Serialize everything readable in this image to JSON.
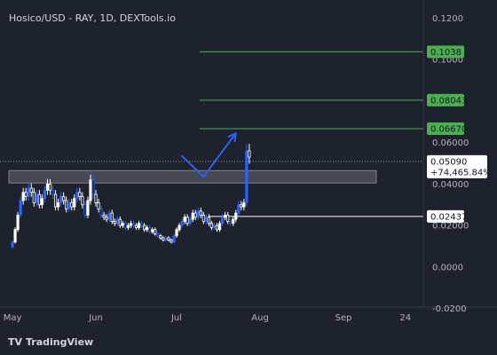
{
  "header": {
    "title": "Hosico/USD - RAY, 1D, DEXTools.io"
  },
  "brand": {
    "logo_text": "TV",
    "name": "TradingView"
  },
  "colors": {
    "background": "#1e222d",
    "candle": "#ffffff",
    "candle_alt": "#2962ff",
    "target_line": "#4caf50",
    "target_tag": "#4caf50",
    "support_tag": "#ffffff",
    "price_tag": "#ffffff",
    "projection": "#2962ff",
    "zone_fill": "#787b86",
    "axis_text": "#b2b5be"
  },
  "chart_data": {
    "type": "candlestick",
    "title": "Hosico/USD - RAY, 1D, DEXTools.io",
    "y_axis": {
      "ticks": [
        0.12,
        0.1,
        0.06,
        0.04,
        0.02,
        0.0,
        -0.02
      ],
      "tick_labels": [
        "0.1200",
        "0.1000",
        "0.06000",
        "0.04000",
        "0.02000",
        "0.0000",
        "-0.0200"
      ],
      "range": [
        -0.0215,
        0.1245
      ]
    },
    "x_axis": {
      "tick_labels": [
        "May",
        "Jun",
        "Jul",
        "Aug",
        "Sep",
        "24"
      ],
      "tick_dates": [
        "2025-05-01",
        "2025-06-01",
        "2025-07-01",
        "2025-08-01",
        "2025-09-01",
        "2025-09-24"
      ],
      "range": [
        "2025-04-30",
        "2025-09-30"
      ]
    },
    "candles": {
      "start_date": "2025-05-01",
      "close": [
        0.012,
        0.018,
        0.025,
        0.032,
        0.036,
        0.034,
        0.038,
        0.036,
        0.031,
        0.035,
        0.03,
        0.033,
        0.037,
        0.04,
        0.037,
        0.035,
        0.029,
        0.031,
        0.034,
        0.032,
        0.028,
        0.031,
        0.029,
        0.033,
        0.036,
        0.034,
        0.03,
        0.025,
        0.032,
        0.042,
        0.035,
        0.031,
        0.028,
        0.025,
        0.024,
        0.023,
        0.026,
        0.022,
        0.021,
        0.023,
        0.02,
        0.021,
        0.019,
        0.02,
        0.021,
        0.02,
        0.019,
        0.021,
        0.02,
        0.018,
        0.019,
        0.017,
        0.018,
        0.016,
        0.015,
        0.014,
        0.013,
        0.014,
        0.013,
        0.012,
        0.015,
        0.018,
        0.02,
        0.022,
        0.024,
        0.021,
        0.023,
        0.026,
        0.024,
        0.027,
        0.025,
        0.022,
        0.024,
        0.021,
        0.019,
        0.02,
        0.018,
        0.021,
        0.024,
        0.025,
        0.022,
        0.021,
        0.023,
        0.026,
        0.03,
        0.029,
        0.031,
        0.056,
        0.053
      ]
    },
    "current_price": 0.0509,
    "current_change": "+74,465.84%",
    "target_levels": [
      0.1038,
      0.08043,
      0.0667
    ],
    "target_labels": [
      "0.1038",
      "0.08043",
      "0.06670"
    ],
    "support_level": 0.02437,
    "support_label": "0.02437",
    "resistance_zone": [
      0.0405,
      0.0465
    ],
    "projection_path": [
      {
        "date": "2025-07-03",
        "value": 0.0535
      },
      {
        "date": "2025-07-11",
        "value": 0.0435
      },
      {
        "date": "2025-07-23",
        "value": 0.0645
      }
    ]
  }
}
